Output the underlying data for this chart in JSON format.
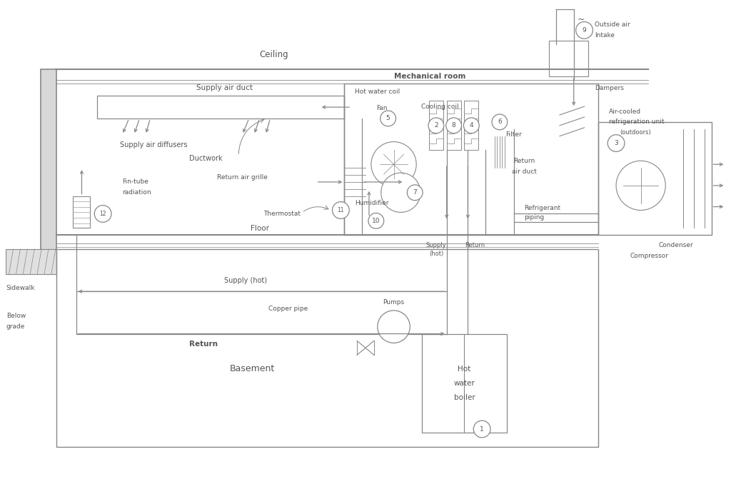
{
  "bg_color": "#ffffff",
  "lc": "#888888",
  "tc": "#555555",
  "fig_w": 10.24,
  "fig_h": 6.78,
  "xlim": [
    0,
    102
  ],
  "ylim": [
    0,
    68
  ]
}
